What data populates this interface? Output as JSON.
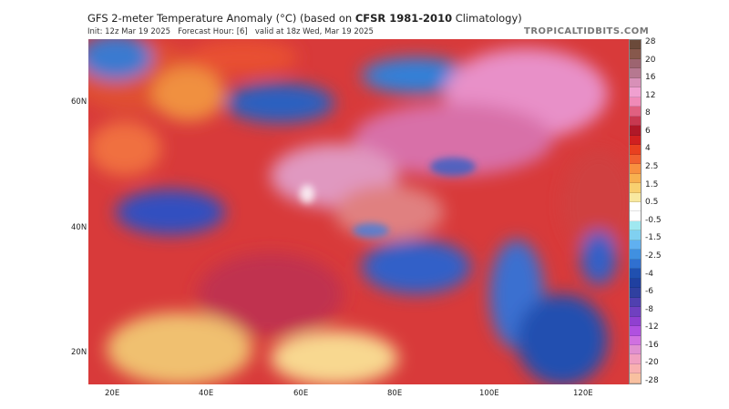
{
  "title": {
    "prefix": "GFS 2-meter Temperature Anomaly (°C) (based on ",
    "bold": "CFSR 1981-2010",
    "suffix": " Climatology)"
  },
  "subtitle": {
    "init": "Init: 12z Mar 19 2025",
    "forecast_hour": "Forecast Hour: [6]",
    "valid": "valid at 18z Wed, Mar 19 2025"
  },
  "brand": "TROPICALTIDBITS.COM",
  "lat_labels": [
    "60N",
    "40N",
    "20N"
  ],
  "lon_labels": [
    "20E",
    "40E",
    "60E",
    "80E",
    "100E",
    "120E"
  ],
  "colorbar": {
    "labels": [
      "28",
      "20",
      "16",
      "12",
      "8",
      "6",
      "4",
      "2.5",
      "1.5",
      "0.5",
      "-0.5",
      "-1.5",
      "-2.5",
      "-4",
      "-6",
      "-8",
      "-12",
      "-16",
      "-20",
      "-28"
    ],
    "colors": [
      "#6b4a3a",
      "#87584c",
      "#9d6470",
      "#b67890",
      "#d890b8",
      "#f0a0d0",
      "#f08ab8",
      "#e06080",
      "#c83850",
      "#b01828",
      "#d02020",
      "#e84020",
      "#f06030",
      "#f89040",
      "#f8b050",
      "#f8d070",
      "#f8e8a0",
      "#ffffff",
      "#ffffff",
      "#a0e8f0",
      "#80d0f0",
      "#60b0f0",
      "#4090e0",
      "#3070d0",
      "#2050b0",
      "#2040a0",
      "#3040a0",
      "#5040b0",
      "#7040c0",
      "#9040d0",
      "#b050e0",
      "#d070e0",
      "#e090d0",
      "#f0a0c0",
      "#f8b0b0",
      "#f8c0a0"
    ]
  }
}
